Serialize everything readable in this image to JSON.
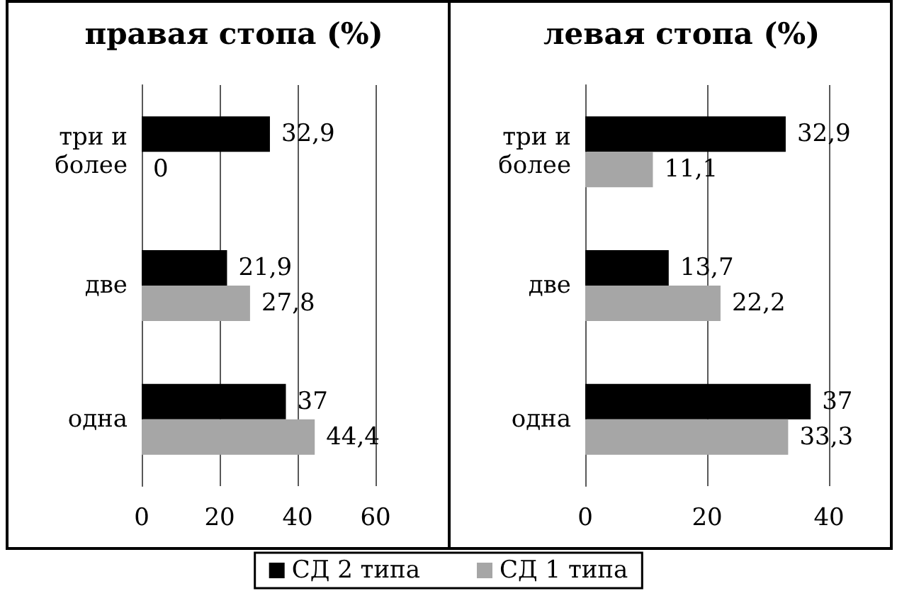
{
  "chart_data": [
    {
      "type": "bar",
      "orientation": "horizontal",
      "title": "правая стопа (%)",
      "categories": [
        "три и более",
        "две",
        "одна"
      ],
      "series": [
        {
          "name": "СД 2 типа",
          "color": "#000000",
          "values": [
            32.9,
            21.9,
            37
          ],
          "value_labels": [
            "32,9",
            "21,9",
            "37"
          ]
        },
        {
          "name": "СД 1 типа",
          "color": "#a6a6a6",
          "values": [
            0,
            27.8,
            44.4
          ],
          "value_labels": [
            "0",
            "27,8",
            "44,4"
          ]
        }
      ],
      "xlim": [
        0,
        60
      ],
      "xticks": [
        0,
        20,
        40,
        60
      ],
      "grid": "x",
      "legend": "bottom"
    },
    {
      "type": "bar",
      "orientation": "horizontal",
      "title": "левая стопа (%)",
      "categories": [
        "три и более",
        "две",
        "одна"
      ],
      "series": [
        {
          "color": "#000000",
          "values": [
            32.9,
            13.7,
            37
          ],
          "value_labels": [
            "32,9",
            "13,7",
            "37"
          ]
        },
        {
          "color": "#a6a6a6",
          "values": [
            11.1,
            22.2,
            33.3
          ],
          "value_labels": [
            "11,1",
            "22,2",
            "33,3"
          ]
        }
      ],
      "xlim": [
        0,
        40
      ],
      "xticks": [
        0,
        20,
        40
      ],
      "grid": "x"
    }
  ]
}
